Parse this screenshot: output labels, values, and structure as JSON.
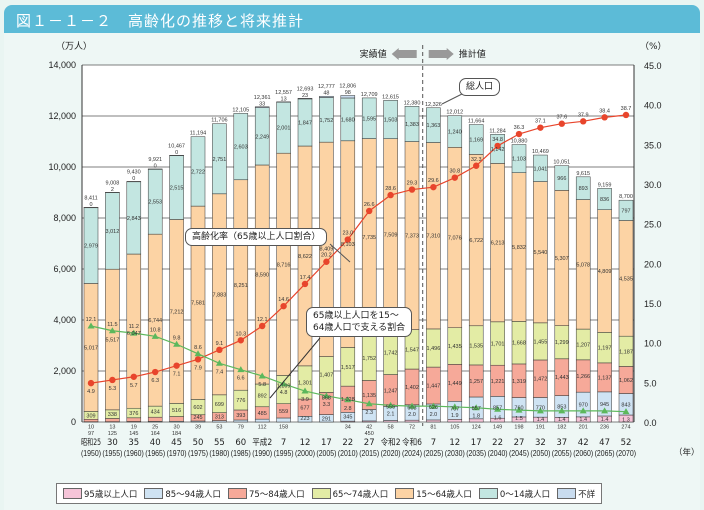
{
  "title": "図１－１－２　高齢化の推移と将来推計",
  "chart_data": {
    "type": "bar",
    "subtype": "stacked bar with line overlays (dual axis)",
    "title": "高齢化の推移と将来推計",
    "y_left_unit": "（万人）",
    "y_right_unit": "（%）",
    "x_unit": "（年）",
    "ylim_left": [
      0,
      14000
    ],
    "ylim_right": [
      0,
      45
    ],
    "y_left_ticks": [
      "0",
      "2,000",
      "4,000",
      "6,000",
      "8,000",
      "10,000",
      "12,000",
      "14,000"
    ],
    "y_right_ticks": [
      "0.0",
      "5.0",
      "10.0",
      "15.0",
      "20.0",
      "25.0",
      "30.0",
      "35.0",
      "40.0",
      "45.0"
    ],
    "grid": true,
    "legend_position": "bottom",
    "actual_label": "実績値",
    "projection_label": "推計値",
    "categories_era": [
      "昭和25",
      "30",
      "35",
      "40",
      "45",
      "50",
      "55",
      "60",
      "平成2",
      "7",
      "12",
      "17",
      "22",
      "27",
      "令和2",
      "令和6",
      "7",
      "12",
      "17",
      "22",
      "27",
      "32",
      "37",
      "42",
      "47",
      "52"
    ],
    "categories_year": [
      "(1950)",
      "(1955)",
      "(1960)",
      "(1965)",
      "(1970)",
      "(1975)",
      "(1980)",
      "(1985)",
      "(1990)",
      "(1995)",
      "(2000)",
      "(2005)",
      "(2010)",
      "(2015)",
      "(2020)",
      "(2024)",
      "(2025)",
      "(2030)",
      "(2035)",
      "(2040)",
      "(2045)",
      "(2050)",
      "(2055)",
      "(2060)",
      "(2065)",
      "(2070)"
    ],
    "totals": [
      "8,411",
      "9,008",
      "9,430",
      "9,921",
      "10,467",
      "11,194",
      "11,706",
      "12,105",
      "12,361",
      "12,557",
      "12,693",
      "12,777",
      "12,806",
      "12,709",
      "12,615",
      "12,380",
      "12,326",
      "12,012",
      "11,664",
      "11,284",
      "10,880",
      "10,469",
      "10,051",
      "9,615",
      "9,159",
      "8,700"
    ],
    "series": [
      {
        "name": "95歳以上人口",
        "color": "#f5c4d8",
        "values": [
          null,
          null,
          null,
          null,
          null,
          null,
          null,
          null,
          null,
          null,
          null,
          null,
          34,
          42,
          58,
          72,
          81,
          105,
          124,
          149,
          198,
          191,
          182,
          201,
          236,
          274
        ]
      },
      {
        "name": "85～94歳人口",
        "color": "#cfe3f3",
        "values": [
          10,
          13,
          19,
          25,
          30,
          39,
          53,
          79,
          112,
          158,
          223,
          291,
          345,
          450,
          555,
          603,
          626,
          707,
          857,
          857,
          760,
          770,
          853,
          970,
          945,
          843
        ]
      },
      {
        "name": "75～84歳人口",
        "color": "#f6a999",
        "values": [
          97,
          125,
          145,
          164,
          184,
          245,
          313,
          393,
          485,
          559,
          677,
          868,
          1028,
          1135,
          1247,
          1402,
          1447,
          1449,
          1257,
          1221,
          1319,
          1472,
          1443,
          1266,
          1137,
          1062
        ]
      },
      {
        "name": "65～74歳人口",
        "color": "#e3eca5",
        "values": [
          309,
          338,
          376,
          434,
          516,
          602,
          699,
          776,
          892,
          1109,
          1301,
          1407,
          1517,
          1752,
          1742,
          1547,
          1496,
          1435,
          1535,
          1701,
          1668,
          1455,
          1299,
          1207,
          1197,
          1187
        ]
      },
      {
        "name": "15～64歳人口",
        "color": "#fcd3a4",
        "values": [
          5017,
          5517,
          6047,
          6744,
          7212,
          7581,
          7883,
          8251,
          8590,
          8716,
          8622,
          8409,
          8103,
          7735,
          7509,
          7373,
          7310,
          7076,
          6722,
          6213,
          5832,
          5540,
          5307,
          5078,
          4809,
          4535
        ]
      },
      {
        "name": "0～14歳人口",
        "color": "#c3e6e1",
        "values": [
          2979,
          3012,
          2843,
          2553,
          2515,
          2722,
          2751,
          2603,
          2249,
          2001,
          1847,
          1752,
          1680,
          1595,
          1503,
          1383,
          1363,
          1240,
          1169,
          1142,
          1103,
          1041,
          966,
          893,
          836,
          797
        ]
      },
      {
        "name": "不詳",
        "color": "#c9dcef",
        "values": [
          0,
          2,
          0,
          0,
          0,
          null,
          null,
          null,
          33,
          13,
          23,
          48,
          98,
          null,
          null,
          null,
          null,
          null,
          null,
          null,
          null,
          null,
          null,
          null,
          null,
          null
        ]
      }
    ],
    "lines": [
      {
        "name": "高齢化率（65歳以上人口割合）",
        "axis": "right",
        "color": "#e8452c",
        "values": [
          4.9,
          5.3,
          5.7,
          6.3,
          7.1,
          7.9,
          9.1,
          10.3,
          12.1,
          14.6,
          17.4,
          20.2,
          23.0,
          26.6,
          28.6,
          29.3,
          29.6,
          30.8,
          32.3,
          34.8,
          36.3,
          37.1,
          37.6,
          37.9,
          38.4,
          38.7
        ]
      },
      {
        "name": "65歳以上人口を15～64歳人口で支える割合",
        "axis": "right",
        "color": "#5cb85c",
        "values": [
          12.1,
          11.5,
          11.2,
          10.8,
          9.8,
          8.6,
          7.4,
          6.6,
          5.8,
          4.8,
          3.9,
          3.3,
          2.8,
          2.3,
          2.1,
          2.0,
          2.0,
          1.9,
          1.8,
          1.6,
          1.5,
          1.4,
          1.4,
          1.4,
          1.4,
          1.3
        ]
      }
    ],
    "callouts": {
      "total": "総人口",
      "aging_rate": "高齢化率（65歳以上人口割合）",
      "support_line1": "65歳以上人口を15～",
      "support_line2": "64歳人口で支える割合"
    }
  }
}
